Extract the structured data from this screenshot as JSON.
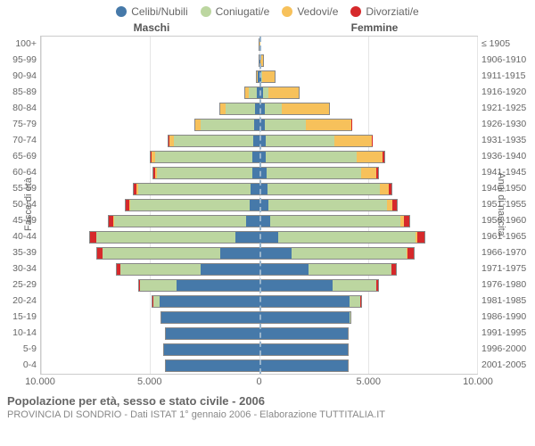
{
  "legend": [
    {
      "label": "Celibi/Nubili",
      "color": "#4679a9"
    },
    {
      "label": "Coniugati/e",
      "color": "#bcd6a0"
    },
    {
      "label": "Vedovi/e",
      "color": "#f7c15b"
    },
    {
      "label": "Divorziati/e",
      "color": "#d6292b"
    }
  ],
  "header_left": "Maschi",
  "header_right": "Femmine",
  "axis_left_title": "Fasce di età",
  "axis_right_title": "Anni di nascita",
  "age_labels": [
    "100+",
    "95-99",
    "90-94",
    "85-89",
    "80-84",
    "75-79",
    "70-74",
    "65-69",
    "60-64",
    "55-59",
    "50-54",
    "45-49",
    "40-44",
    "35-39",
    "30-34",
    "25-29",
    "20-24",
    "15-19",
    "10-14",
    "5-9",
    "0-4"
  ],
  "birth_labels": [
    "≤ 1905",
    "1906-1910",
    "1911-1915",
    "1916-1920",
    "1921-1925",
    "1926-1930",
    "1931-1935",
    "1936-1940",
    "1941-1945",
    "1946-1950",
    "1951-1955",
    "1956-1960",
    "1961-1965",
    "1966-1970",
    "1971-1975",
    "1976-1980",
    "1981-1985",
    "1986-1990",
    "1991-1995",
    "1996-2000",
    "2001-2005"
  ],
  "x_ticks": [
    -10000,
    -5000,
    0,
    5000,
    10000
  ],
  "x_tick_labels": [
    "10.000",
    "5.000",
    "0",
    "5.000",
    "10.000"
  ],
  "x_max": 10000,
  "colors": {
    "celibi": "#4679a9",
    "coniugati": "#bcd6a0",
    "vedovi": "#f7c15b",
    "divorziati": "#d6292b",
    "grid": "#e5e5e5",
    "center": "#9ab5cc",
    "border": "#888"
  },
  "data": [
    {
      "m": [
        5,
        0,
        1,
        0
      ],
      "f": [
        20,
        0,
        40,
        0
      ]
    },
    {
      "m": [
        20,
        5,
        10,
        0
      ],
      "f": [
        60,
        5,
        180,
        0
      ]
    },
    {
      "m": [
        60,
        40,
        40,
        0
      ],
      "f": [
        120,
        40,
        600,
        0
      ]
    },
    {
      "m": [
        120,
        400,
        150,
        0
      ],
      "f": [
        200,
        250,
        1400,
        0
      ]
    },
    {
      "m": [
        180,
        1400,
        250,
        0
      ],
      "f": [
        250,
        800,
        2200,
        0
      ]
    },
    {
      "m": [
        220,
        2500,
        250,
        10
      ],
      "f": [
        280,
        1900,
        2100,
        10
      ]
    },
    {
      "m": [
        260,
        3700,
        200,
        30
      ],
      "f": [
        300,
        3200,
        1700,
        30
      ]
    },
    {
      "m": [
        300,
        4500,
        150,
        50
      ],
      "f": [
        320,
        4200,
        1200,
        50
      ]
    },
    {
      "m": [
        320,
        4400,
        100,
        70
      ],
      "f": [
        330,
        4400,
        700,
        70
      ]
    },
    {
      "m": [
        380,
        5200,
        70,
        120
      ],
      "f": [
        380,
        5200,
        400,
        130
      ]
    },
    {
      "m": [
        450,
        5500,
        50,
        160
      ],
      "f": [
        420,
        5500,
        250,
        180
      ]
    },
    {
      "m": [
        600,
        6100,
        30,
        220
      ],
      "f": [
        520,
        6000,
        150,
        250
      ]
    },
    {
      "m": [
        1100,
        6400,
        20,
        280
      ],
      "f": [
        900,
        6300,
        100,
        320
      ]
    },
    {
      "m": [
        1800,
        5400,
        10,
        240
      ],
      "f": [
        1500,
        5300,
        60,
        280
      ]
    },
    {
      "m": [
        2700,
        3700,
        5,
        150
      ],
      "f": [
        2300,
        3800,
        30,
        180
      ]
    },
    {
      "m": [
        3800,
        1700,
        0,
        60
      ],
      "f": [
        3400,
        2000,
        10,
        80
      ]
    },
    {
      "m": [
        4600,
        300,
        0,
        10
      ],
      "f": [
        4200,
        500,
        0,
        15
      ]
    },
    {
      "m": [
        4500,
        10,
        0,
        0
      ],
      "f": [
        4200,
        20,
        0,
        0
      ]
    },
    {
      "m": [
        4300,
        0,
        0,
        0
      ],
      "f": [
        4100,
        0,
        0,
        0
      ]
    },
    {
      "m": [
        4400,
        0,
        0,
        0
      ],
      "f": [
        4100,
        0,
        0,
        0
      ]
    },
    {
      "m": [
        4300,
        0,
        0,
        0
      ],
      "f": [
        4100,
        0,
        0,
        0
      ]
    }
  ],
  "footer_title": "Popolazione per età, sesso e stato civile - 2006",
  "footer_sub": "PROVINCIA DI SONDRIO - Dati ISTAT 1° gennaio 2006 - Elaborazione TUTTITALIA.IT",
  "chart_type": "population-pyramid"
}
